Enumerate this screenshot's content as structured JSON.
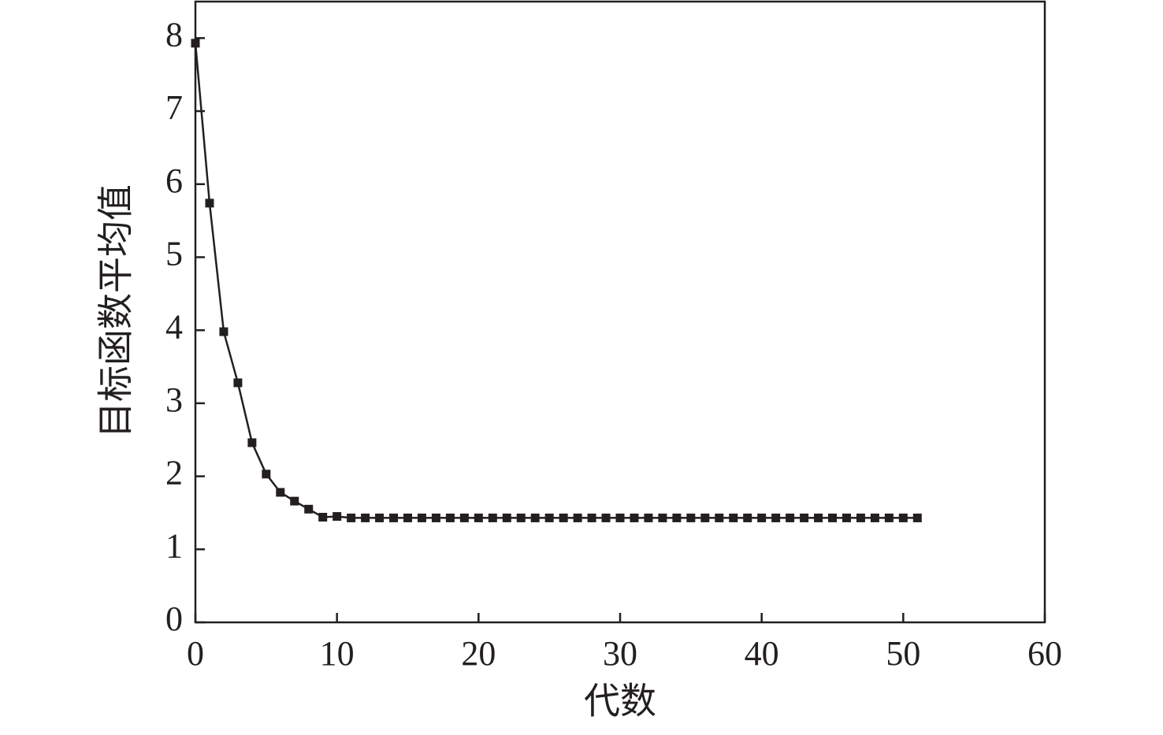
{
  "chart_data": {
    "type": "line",
    "x_label": "代数",
    "y_label": "目标函数平均值",
    "x": [
      0,
      1,
      2,
      3,
      4,
      5,
      6,
      7,
      8,
      9,
      10,
      11,
      12,
      13,
      14,
      15,
      16,
      17,
      18,
      19,
      20,
      21,
      22,
      23,
      24,
      25,
      26,
      27,
      28,
      29,
      30,
      31,
      32,
      33,
      34,
      35,
      36,
      37,
      38,
      39,
      40,
      41,
      42,
      43,
      44,
      45,
      46,
      47,
      48,
      49,
      50,
      51
    ],
    "series": [
      {
        "color": "#231f20",
        "values": [
          7.93,
          5.74,
          3.98,
          3.28,
          2.46,
          2.03,
          1.78,
          1.66,
          1.55,
          1.44,
          1.45,
          1.43,
          1.43,
          1.43,
          1.43,
          1.43,
          1.43,
          1.43,
          1.43,
          1.43,
          1.43,
          1.43,
          1.43,
          1.43,
          1.43,
          1.43,
          1.43,
          1.43,
          1.43,
          1.43,
          1.43,
          1.43,
          1.43,
          1.43,
          1.43,
          1.43,
          1.43,
          1.43,
          1.43,
          1.43,
          1.43,
          1.43,
          1.43,
          1.43,
          1.43,
          1.43,
          1.43,
          1.43,
          1.43,
          1.43,
          1.43,
          1.43
        ]
      }
    ],
    "xlim": [
      0,
      60
    ],
    "xticks": [
      0,
      10,
      20,
      30,
      40,
      50,
      60
    ],
    "ylim": [
      0,
      8.5
    ],
    "yticks": [
      0,
      1,
      2,
      3,
      4,
      5,
      6,
      7,
      8
    ]
  }
}
